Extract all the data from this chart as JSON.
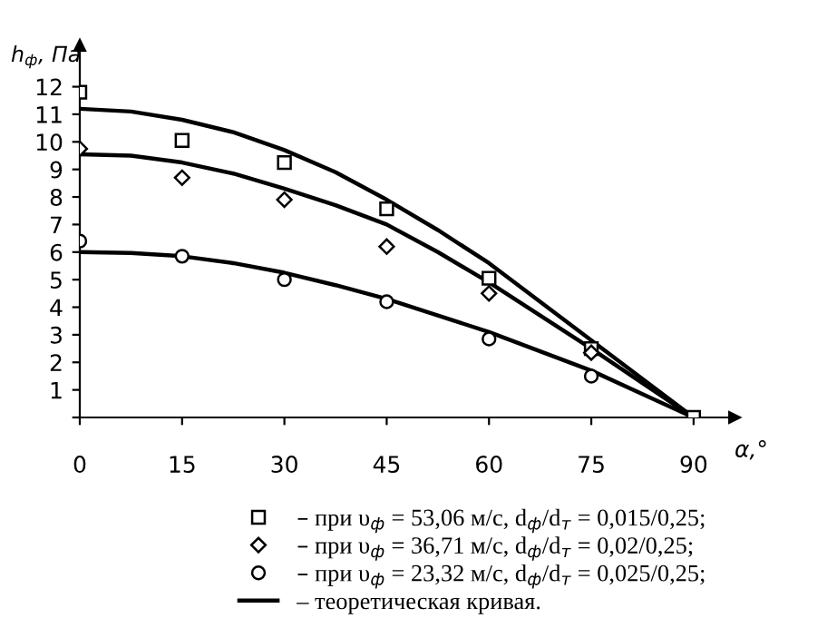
{
  "chart_data": {
    "type": "scatter",
    "ylabel": "h$_{ф}$, Па",
    "xlabel": "α,°",
    "xlim": [
      0,
      96
    ],
    "ylim": [
      0,
      13.5
    ],
    "xticks": [
      0,
      15,
      30,
      45,
      60,
      75,
      90
    ],
    "yticks": [
      {
        "value": 0,
        "label": null
      },
      1,
      2,
      3,
      4,
      5,
      6,
      7,
      8,
      9,
      10,
      11,
      12
    ],
    "grid": false,
    "legend": "bottom",
    "series": [
      {
        "name": "– при υ$_{ф}$ = 53,06 м/с, d$_{ф}$/d$_{т}$ = 0,015/0,25;",
        "color": "#000000",
        "marker": "square",
        "x": [
          0,
          15,
          30,
          45,
          60,
          75,
          90
        ],
        "values": [
          11.8,
          10.05,
          9.25,
          7.57,
          5.05,
          2.5,
          0
        ]
      },
      {
        "name": "– при υ$_{ф}$ = 36,71 м/с, d$_{ф}$/d$_{т}$ = 0,02/0,25;",
        "color": "#000000",
        "marker": "diamond",
        "x": [
          0,
          15,
          30,
          45,
          60,
          75
        ],
        "values": [
          9.75,
          8.7,
          7.9,
          6.2,
          4.5,
          2.35
        ]
      },
      {
        "name": "– при υ$_{ф}$ = 23,32 м/с, d$_{ф}$/d$_{т}$ = 0,025/0,25;",
        "color": "#000000",
        "marker": "circle",
        "x": [
          0,
          15,
          30,
          45,
          60,
          75
        ],
        "values": [
          6.4,
          5.85,
          5.0,
          4.2,
          2.85,
          1.5
        ]
      },
      {
        "name": "– теоретическая кривая.",
        "type": "line",
        "color": "#000000",
        "line_style": "solid",
        "x": [
          0,
          7.5,
          15,
          22.5,
          30,
          37.5,
          45,
          52.5,
          60,
          67.5,
          75,
          82.5,
          90
        ],
        "values": [
          11.2,
          11.1,
          10.8,
          10.35,
          9.7,
          8.9,
          7.9,
          6.8,
          5.6,
          4.2,
          2.8,
          1.4,
          0
        ]
      },
      {
        "type": "line",
        "color": "#000000",
        "line_style": "solid",
        "x": [
          0,
          7.5,
          15,
          22.5,
          30,
          37.5,
          45,
          52.5,
          60,
          67.5,
          75,
          82.5,
          90
        ],
        "values": [
          9.55,
          9.5,
          9.25,
          8.85,
          8.3,
          7.7,
          7.0,
          6.0,
          4.9,
          3.7,
          2.5,
          1.25,
          0
        ]
      },
      {
        "type": "line",
        "color": "#000000",
        "line_style": "solid",
        "x": [
          0,
          7.5,
          15,
          22.5,
          30,
          37.5,
          45,
          52.5,
          60,
          67.5,
          75,
          82.5,
          90
        ],
        "values": [
          6.0,
          5.97,
          5.85,
          5.6,
          5.25,
          4.8,
          4.3,
          3.7,
          3.1,
          2.4,
          1.7,
          0.85,
          0
        ]
      }
    ]
  }
}
